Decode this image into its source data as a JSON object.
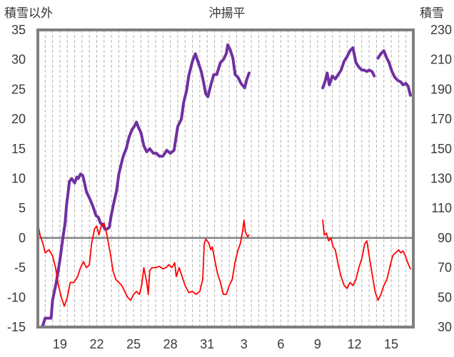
{
  "chart_data": {
    "type": "line",
    "title": "沖揚平",
    "left_axis_label": "積雪以外",
    "right_axis_label": "積雪",
    "y_left": {
      "min": -15,
      "max": 35,
      "ticks": [
        -15,
        -10,
        -5,
        0,
        5,
        10,
        15,
        20,
        25,
        30,
        35
      ]
    },
    "y_right": {
      "min": 30,
      "max": 230,
      "ticks": [
        30,
        50,
        70,
        90,
        110,
        130,
        150,
        170,
        190,
        210,
        230
      ]
    },
    "x_axis": {
      "min": 0,
      "max": 51,
      "ticks": [
        {
          "x": 3,
          "label": "19"
        },
        {
          "x": 8,
          "label": "22"
        },
        {
          "x": 13,
          "label": "25"
        },
        {
          "x": 18,
          "label": "28"
        },
        {
          "x": 23,
          "label": "31"
        },
        {
          "x": 28,
          "label": "3"
        },
        {
          "x": 33,
          "label": "6"
        },
        {
          "x": 38,
          "label": "9"
        },
        {
          "x": 43,
          "label": "12"
        },
        {
          "x": 48,
          "label": "15"
        }
      ]
    },
    "grid": {
      "vertical": "dashed",
      "horizontal": "none",
      "zero_line": true
    },
    "series": [
      {
        "axis": "right",
        "color": "#7030A0",
        "segments": [
          [
            [
              0,
              30
            ],
            [
              0.6,
              30
            ],
            [
              1.0,
              36
            ],
            [
              1.3,
              36
            ],
            [
              1.8,
              36
            ],
            [
              2.0,
              48
            ],
            [
              2.5,
              60
            ],
            [
              3.0,
              75
            ],
            [
              3.4,
              90
            ],
            [
              3.7,
              100
            ],
            [
              3.9,
              112
            ],
            [
              4.1,
              120
            ],
            [
              4.3,
              128
            ],
            [
              4.6,
              130
            ],
            [
              5.0,
              127
            ],
            [
              5.3,
              131
            ],
            [
              5.5,
              130
            ],
            [
              5.8,
              133
            ],
            [
              6.1,
              132
            ],
            [
              6.3,
              128
            ],
            [
              6.6,
              121
            ],
            [
              7.0,
              117
            ],
            [
              7.5,
              111
            ],
            [
              7.9,
              105
            ],
            [
              8.2,
              104
            ],
            [
              8.5,
              100
            ],
            [
              8.8,
              99
            ],
            [
              9.1,
              96
            ],
            [
              9.4,
              96
            ],
            [
              9.7,
              97
            ],
            [
              10.0,
              106
            ],
            [
              10.3,
              113
            ],
            [
              10.7,
              122
            ],
            [
              11.0,
              133
            ],
            [
              11.3,
              139
            ],
            [
              11.6,
              145
            ],
            [
              12.0,
              150
            ],
            [
              12.4,
              158
            ],
            [
              12.8,
              163
            ],
            [
              13.1,
              165
            ],
            [
              13.4,
              168
            ],
            [
              13.7,
              164
            ],
            [
              14.0,
              161
            ],
            [
              14.4,
              152
            ],
            [
              14.8,
              148
            ],
            [
              15.2,
              150
            ],
            [
              15.7,
              147
            ],
            [
              16.1,
              147
            ],
            [
              16.5,
              145
            ],
            [
              17.0,
              145
            ],
            [
              17.5,
              149
            ],
            [
              18.0,
              147
            ],
            [
              18.5,
              149
            ],
            [
              19.0,
              165
            ],
            [
              19.5,
              170
            ],
            [
              19.8,
              181
            ],
            [
              20.2,
              189
            ],
            [
              20.5,
              199
            ],
            [
              21.0,
              209
            ],
            [
              21.4,
              214
            ],
            [
              21.8,
              208
            ],
            [
              22.2,
              202
            ],
            [
              22.5,
              195
            ],
            [
              22.8,
              187
            ],
            [
              23.1,
              185
            ],
            [
              23.5,
              193
            ],
            [
              23.9,
              200
            ],
            [
              24.3,
              200
            ],
            [
              24.8,
              208
            ],
            [
              25.2,
              210
            ],
            [
              25.6,
              214
            ],
            [
              25.8,
              220
            ],
            [
              26.1,
              217
            ],
            [
              26.5,
              211
            ],
            [
              26.8,
              200
            ],
            [
              27.2,
              198
            ],
            [
              27.6,
              194
            ],
            [
              28.1,
              191
            ],
            [
              28.4,
              197
            ],
            [
              28.7,
              201
            ]
          ],
          [
            [
              38.7,
              191
            ],
            [
              39.0,
              195
            ],
            [
              39.3,
              201
            ],
            [
              39.6,
              193
            ],
            [
              40.0,
              199
            ],
            [
              40.4,
              197
            ],
            [
              40.8,
              200
            ],
            [
              41.2,
              203
            ],
            [
              41.6,
              209
            ],
            [
              42.0,
              212
            ],
            [
              42.4,
              216
            ],
            [
              42.8,
              218
            ],
            [
              43.2,
              208
            ],
            [
              43.6,
              205
            ],
            [
              44.0,
              203
            ],
            [
              44.3,
              203
            ],
            [
              44.7,
              202
            ],
            [
              45.0,
              203
            ],
            [
              45.4,
              202
            ],
            [
              45.7,
              199
            ]
          ],
          [
            [
              46.2,
              211
            ],
            [
              46.6,
              214
            ],
            [
              47.0,
              216
            ],
            [
              47.4,
              211
            ],
            [
              47.7,
              208
            ],
            [
              48.1,
              202
            ],
            [
              48.5,
              198
            ],
            [
              48.9,
              196
            ],
            [
              49.3,
              195
            ],
            [
              49.6,
              193
            ],
            [
              50.0,
              194
            ],
            [
              50.3,
              192
            ],
            [
              50.6,
              186
            ]
          ]
        ]
      },
      {
        "axis": "left",
        "color": "#FF0000",
        "segments": [
          [
            [
              0,
              2.5
            ],
            [
              0.3,
              0.5
            ],
            [
              0.7,
              -1.0
            ],
            [
              1.0,
              -2.5
            ],
            [
              1.5,
              -2.0
            ],
            [
              2.0,
              -3.0
            ],
            [
              2.4,
              -5.0
            ],
            [
              2.8,
              -8.0
            ],
            [
              3.2,
              -10.0
            ],
            [
              3.6,
              -11.5
            ],
            [
              4.0,
              -10.0
            ],
            [
              4.4,
              -7.5
            ],
            [
              4.9,
              -7.5
            ],
            [
              5.4,
              -6.5
            ],
            [
              5.8,
              -5.0
            ],
            [
              6.2,
              -4.0
            ],
            [
              6.6,
              -5.0
            ],
            [
              7.0,
              -4.5
            ],
            [
              7.3,
              -1.0
            ],
            [
              7.7,
              1.5
            ],
            [
              8.0,
              2.0
            ],
            [
              8.3,
              0.5
            ],
            [
              8.6,
              2.0
            ],
            [
              9.0,
              2.5
            ],
            [
              9.3,
              1.0
            ],
            [
              9.6,
              -1.0
            ],
            [
              9.9,
              -3.0
            ],
            [
              10.2,
              -5.5
            ],
            [
              10.6,
              -7.0
            ],
            [
              11.0,
              -7.5
            ],
            [
              11.4,
              -8.0
            ],
            [
              11.8,
              -9.0
            ],
            [
              12.2,
              -10.0
            ],
            [
              12.6,
              -10.5
            ],
            [
              13.0,
              -9.5
            ],
            [
              13.4,
              -9.0
            ],
            [
              13.8,
              -9.5
            ],
            [
              14.1,
              -8.0
            ],
            [
              14.4,
              -5.0
            ],
            [
              14.8,
              -7.5
            ],
            [
              15.0,
              -9.5
            ],
            [
              15.2,
              -5.5
            ],
            [
              15.5,
              -5.0
            ],
            [
              16.0,
              -5.0
            ],
            [
              16.5,
              -4.8
            ],
            [
              17.0,
              -5.2
            ],
            [
              17.4,
              -5.0
            ],
            [
              17.8,
              -4.5
            ],
            [
              18.2,
              -5.0
            ],
            [
              18.6,
              -4.2
            ],
            [
              18.8,
              -6.5
            ],
            [
              19.2,
              -5.0
            ],
            [
              19.6,
              -6.5
            ],
            [
              20.0,
              -8.0
            ],
            [
              20.5,
              -9.2
            ],
            [
              21.0,
              -9.0
            ],
            [
              21.5,
              -9.5
            ],
            [
              22.0,
              -9.0
            ],
            [
              22.4,
              -7.0
            ],
            [
              22.6,
              -1.0
            ],
            [
              22.8,
              -0.2
            ],
            [
              23.2,
              -0.8
            ],
            [
              23.5,
              -2.0
            ],
            [
              23.7,
              -1.5
            ],
            [
              24.0,
              -3.5
            ],
            [
              24.4,
              -6.0
            ],
            [
              24.8,
              -7.5
            ],
            [
              25.2,
              -9.5
            ],
            [
              25.6,
              -9.5
            ],
            [
              26.0,
              -8.0
            ],
            [
              26.4,
              -7.0
            ],
            [
              26.8,
              -4.0
            ],
            [
              27.2,
              -2.0
            ],
            [
              27.5,
              -1.0
            ],
            [
              27.8,
              1.0
            ],
            [
              28.0,
              3.0
            ],
            [
              28.2,
              1.0
            ],
            [
              28.5,
              0.2
            ],
            [
              28.7,
              0.5
            ]
          ],
          [
            [
              38.7,
              3.0
            ],
            [
              38.9,
              0.5
            ],
            [
              39.2,
              0.8
            ],
            [
              39.5,
              -0.5
            ],
            [
              39.8,
              0.0
            ],
            [
              40.1,
              -1.5
            ],
            [
              40.4,
              -2.0
            ],
            [
              40.8,
              -4.5
            ],
            [
              41.2,
              -6.5
            ],
            [
              41.6,
              -8.0
            ],
            [
              42.0,
              -8.5
            ],
            [
              42.4,
              -7.5
            ],
            [
              42.8,
              -8.0
            ],
            [
              43.2,
              -7.0
            ],
            [
              43.6,
              -5.0
            ],
            [
              44.0,
              -3.5
            ],
            [
              44.4,
              -1.0
            ],
            [
              44.7,
              -0.5
            ],
            [
              45.0,
              -3.0
            ],
            [
              45.4,
              -6.0
            ],
            [
              45.8,
              -9.0
            ],
            [
              46.2,
              -10.5
            ],
            [
              46.6,
              -9.5
            ],
            [
              47.0,
              -8.0
            ],
            [
              47.4,
              -7.0
            ],
            [
              47.8,
              -5.0
            ],
            [
              48.2,
              -3.0
            ],
            [
              48.6,
              -2.5
            ],
            [
              49.0,
              -2.0
            ],
            [
              49.3,
              -2.5
            ],
            [
              49.6,
              -2.2
            ],
            [
              49.9,
              -3.0
            ],
            [
              50.2,
              -4.0
            ],
            [
              50.6,
              -5.2
            ]
          ]
        ]
      }
    ]
  }
}
